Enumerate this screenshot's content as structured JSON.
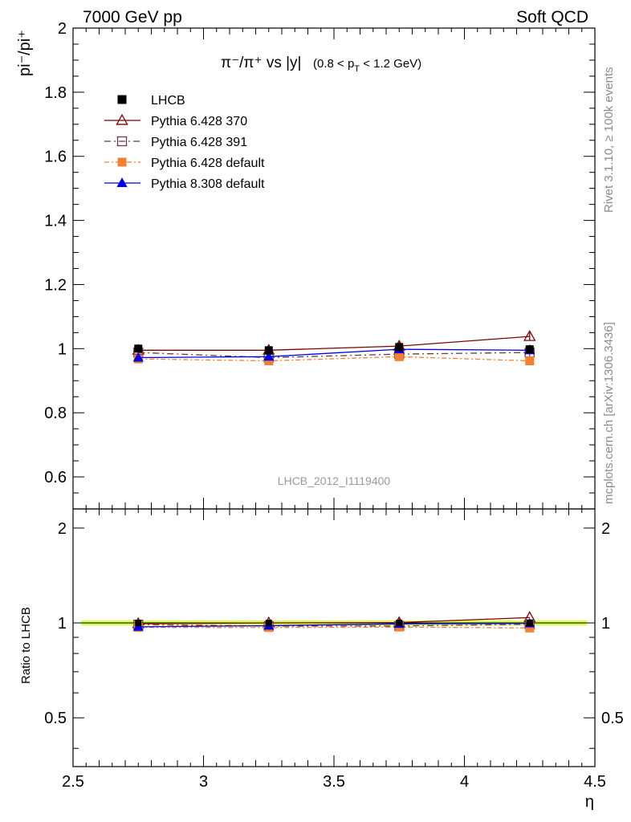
{
  "header": {
    "energy_label": "7000 GeV pp",
    "process_label": "Soft QCD",
    "rivet_label": "Rivet 3.1.10, ≥ 100k events",
    "mcplots_label": "mcplots.cern.ch [arXiv:1306.3436]",
    "analysis_id": "LHCB_2012_I1119400"
  },
  "chart_data": {
    "type": "line",
    "title": {
      "main": "π⁻/π⁺ vs |y|",
      "cut_prefix": "(0.8 < p",
      "cut_sub": "T",
      "cut_suffix": " < 1.2 GeV)"
    },
    "xlabel": "η",
    "ylabel": "pi⁻/pi⁺",
    "ratio_ylabel": "Ratio to LHCB",
    "xlim": [
      2.5,
      4.5
    ],
    "ylim": [
      0.5,
      2.0
    ],
    "ratio_ylim": [
      0.35,
      2.3
    ],
    "ratio_scale": "log",
    "xticks": [
      "2.5",
      "3",
      "3.5",
      "4",
      "4.5"
    ],
    "yticks": [
      "0.6",
      "0.8",
      "1",
      "1.2",
      "1.4",
      "1.6",
      "1.8",
      "2"
    ],
    "ratio_yticks": [
      "0.5",
      "1",
      "2"
    ],
    "x": [
      2.75,
      3.25,
      3.75,
      4.25
    ],
    "data_series": {
      "name": "LHCB",
      "values": [
        1.0,
        0.995,
        1.005,
        0.998
      ],
      "errors": [
        0.012,
        0.012,
        0.012,
        0.014
      ],
      "color": "#000000"
    },
    "mc_series": [
      {
        "name": "Pythia 6.428 370",
        "values": [
          0.995,
          0.995,
          1.008,
          1.038
        ],
        "errors": [
          0.01,
          0.01,
          0.012,
          0.012
        ],
        "color": "#800000",
        "marker": "triangle-open",
        "dash": ""
      },
      {
        "name": "Pythia 6.428 391",
        "values": [
          0.988,
          0.972,
          0.983,
          0.988
        ],
        "errors": [
          0.01,
          0.01,
          0.012,
          0.012
        ],
        "color": "#6b3b3b",
        "marker": "square-open",
        "dash": "8,4,2,4"
      },
      {
        "name": "Pythia 6.428 default",
        "values": [
          0.968,
          0.962,
          0.975,
          0.962
        ],
        "errors": [
          0.01,
          0.012,
          0.014,
          0.014
        ],
        "color": "#f57f33",
        "marker": "square-filled",
        "dash": "6,3,2,3"
      },
      {
        "name": "Pythia 8.308 default",
        "values": [
          0.972,
          0.975,
          0.998,
          0.995
        ],
        "errors": [
          0.01,
          0.01,
          0.012,
          0.012
        ],
        "color": "#0000e6",
        "marker": "triangle-filled",
        "dash": ""
      }
    ],
    "legend_position": "top-left",
    "grid": false
  }
}
